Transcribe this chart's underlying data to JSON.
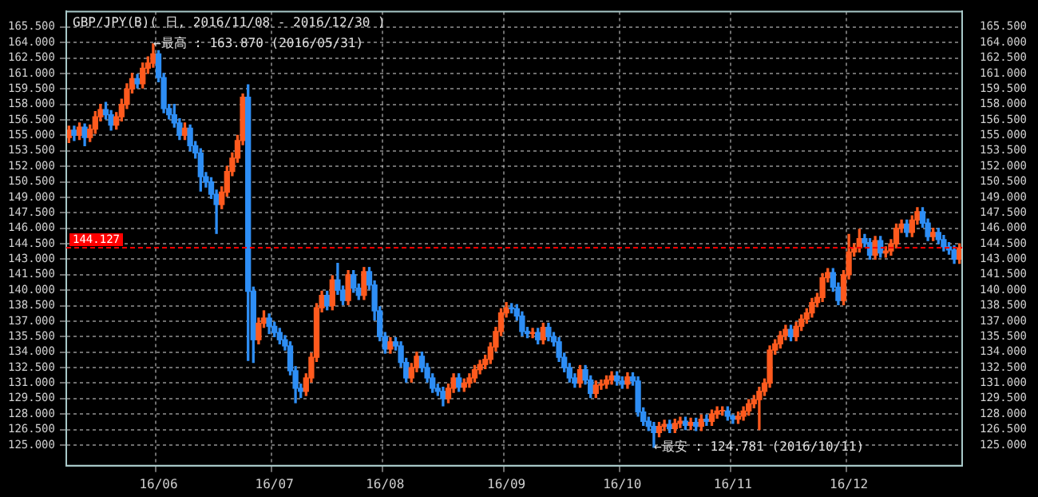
{
  "chart_data": {
    "type": "candlestick",
    "title": "GBP/JPY(B)( 日, 2016/11/08 - 2016/12/30 )",
    "categories": [
      null,
      null,
      null,
      null,
      null,
      null,
      null,
      null,
      null,
      null,
      null,
      null,
      null,
      null,
      null,
      null,
      null,
      "16/06",
      null,
      null,
      null,
      null,
      null,
      null,
      null,
      null,
      null,
      null,
      null,
      null,
      null,
      null,
      null,
      null,
      null,
      null,
      null,
      null,
      null,
      "16/07",
      null,
      null,
      null,
      null,
      null,
      null,
      null,
      null,
      null,
      null,
      null,
      null,
      null,
      null,
      null,
      null,
      null,
      null,
      null,
      null,
      "16/08",
      null,
      null,
      null,
      null,
      null,
      null,
      null,
      null,
      null,
      null,
      null,
      null,
      null,
      null,
      null,
      null,
      null,
      null,
      null,
      null,
      null,
      null,
      "16/09",
      null,
      null,
      null,
      null,
      null,
      null,
      null,
      null,
      null,
      null,
      null,
      null,
      null,
      null,
      null,
      null,
      null,
      null,
      null,
      null,
      null,
      "16/10",
      null,
      null,
      null,
      null,
      null,
      null,
      null,
      null,
      null,
      null,
      null,
      null,
      null,
      null,
      null,
      null,
      null,
      null,
      null,
      null,
      "16/11",
      null,
      null,
      null,
      null,
      null,
      null,
      null,
      null,
      null,
      null,
      null,
      null,
      null,
      null,
      null,
      null,
      null,
      null,
      null,
      null,
      null,
      "16/12",
      null,
      null,
      null,
      null,
      null,
      null,
      null,
      null,
      null,
      null,
      null,
      null,
      null,
      null,
      null,
      null,
      null,
      null,
      null,
      null,
      null
    ],
    "ohlc": [
      [
        154.8,
        155.9,
        154.3,
        155.5
      ],
      [
        155.5,
        155.9,
        154.5,
        155.0
      ],
      [
        155.0,
        156.2,
        154.6,
        155.8
      ],
      [
        155.8,
        156.1,
        154.0,
        154.8
      ],
      [
        154.8,
        156.0,
        154.4,
        155.6
      ],
      [
        155.6,
        157.3,
        155.2,
        156.8
      ],
      [
        156.8,
        158.0,
        156.4,
        157.5
      ],
      [
        157.5,
        158.2,
        156.6,
        157.0
      ],
      [
        157.0,
        157.4,
        155.5,
        156.0
      ],
      [
        156.0,
        157.2,
        155.6,
        156.8
      ],
      [
        156.8,
        158.5,
        156.4,
        158.0
      ],
      [
        158.0,
        160.0,
        157.6,
        159.5
      ],
      [
        159.5,
        161.0,
        159.1,
        160.5
      ],
      [
        160.5,
        160.9,
        159.6,
        160.0
      ],
      [
        160.0,
        162.0,
        159.6,
        161.5
      ],
      [
        161.5,
        162.6,
        161.0,
        162.0
      ],
      [
        162.0,
        163.87,
        161.6,
        162.9
      ],
      [
        162.9,
        163.2,
        160.2,
        160.6
      ],
      [
        160.6,
        161.0,
        157.2,
        157.6
      ],
      [
        157.6,
        158.0,
        156.6,
        157.0
      ],
      [
        157.0,
        158.0,
        155.8,
        156.2
      ],
      [
        156.2,
        156.6,
        154.6,
        155.0
      ],
      [
        155.0,
        156.2,
        154.6,
        155.7
      ],
      [
        155.7,
        156.0,
        153.5,
        154.0
      ],
      [
        154.0,
        154.4,
        152.8,
        153.3
      ],
      [
        153.3,
        153.7,
        149.6,
        151.0
      ],
      [
        151.0,
        151.4,
        150.0,
        150.5
      ],
      [
        150.5,
        150.9,
        148.9,
        149.3
      ],
      [
        149.3,
        149.7,
        145.5,
        148.3
      ],
      [
        148.3,
        150.0,
        147.9,
        149.5
      ],
      [
        149.5,
        152.0,
        149.1,
        151.5
      ],
      [
        151.5,
        153.3,
        151.1,
        152.8
      ],
      [
        152.8,
        155.0,
        152.4,
        154.5
      ],
      [
        154.5,
        159.0,
        154.1,
        158.7
      ],
      [
        158.7,
        159.9,
        133.2,
        139.9
      ],
      [
        139.9,
        140.3,
        133.0,
        135.2
      ],
      [
        135.2,
        137.3,
        134.8,
        136.8
      ],
      [
        136.8,
        138.0,
        136.4,
        137.3
      ],
      [
        137.3,
        137.7,
        135.8,
        136.5
      ],
      [
        136.5,
        136.9,
        135.5,
        135.9
      ],
      [
        135.9,
        136.3,
        134.8,
        135.2
      ],
      [
        135.2,
        135.6,
        134.2,
        134.6
      ],
      [
        134.6,
        135.0,
        131.8,
        132.2
      ],
      [
        132.2,
        132.6,
        129.1,
        130.5
      ],
      [
        130.5,
        130.9,
        129.6,
        130.2
      ],
      [
        130.2,
        131.9,
        129.8,
        131.5
      ],
      [
        131.5,
        133.9,
        131.1,
        133.5
      ],
      [
        133.5,
        138.7,
        133.1,
        138.3
      ],
      [
        138.3,
        139.9,
        137.9,
        139.5
      ],
      [
        139.5,
        139.9,
        138.1,
        138.5
      ],
      [
        138.5,
        141.4,
        138.1,
        141.0
      ],
      [
        141.0,
        142.6,
        139.6,
        140.0
      ],
      [
        140.0,
        140.4,
        138.6,
        139.0
      ],
      [
        139.0,
        141.9,
        138.6,
        141.5
      ],
      [
        141.5,
        141.9,
        139.8,
        140.2
      ],
      [
        140.2,
        140.6,
        139.1,
        139.5
      ],
      [
        139.5,
        142.2,
        139.1,
        141.8
      ],
      [
        141.8,
        142.2,
        140.1,
        140.5
      ],
      [
        140.5,
        140.9,
        137.1,
        138.0
      ],
      [
        138.0,
        138.4,
        135.1,
        135.5
      ],
      [
        135.5,
        135.9,
        133.9,
        134.3
      ],
      [
        134.3,
        135.4,
        133.9,
        135.0
      ],
      [
        135.0,
        135.4,
        134.2,
        134.6
      ],
      [
        134.6,
        135.0,
        132.6,
        133.0
      ],
      [
        133.0,
        133.4,
        131.1,
        131.5
      ],
      [
        131.5,
        132.9,
        131.1,
        132.5
      ],
      [
        132.5,
        134.0,
        132.1,
        133.6
      ],
      [
        133.6,
        134.0,
        132.1,
        132.5
      ],
      [
        132.5,
        132.9,
        131.1,
        131.5
      ],
      [
        131.5,
        131.9,
        130.1,
        130.5
      ],
      [
        130.5,
        130.9,
        129.8,
        130.2
      ],
      [
        130.2,
        130.6,
        128.8,
        129.5
      ],
      [
        129.5,
        130.9,
        129.1,
        130.5
      ],
      [
        130.5,
        131.9,
        130.1,
        131.5
      ],
      [
        131.5,
        131.9,
        130.2,
        130.6
      ],
      [
        130.6,
        131.4,
        130.2,
        131.0
      ],
      [
        131.0,
        131.9,
        130.6,
        131.5
      ],
      [
        131.5,
        132.7,
        131.1,
        132.3
      ],
      [
        132.3,
        133.2,
        131.9,
        132.8
      ],
      [
        132.8,
        133.7,
        132.4,
        133.3
      ],
      [
        133.3,
        134.9,
        132.9,
        134.5
      ],
      [
        134.5,
        136.4,
        134.1,
        136.0
      ],
      [
        136.0,
        138.2,
        135.6,
        137.8
      ],
      [
        137.8,
        138.8,
        137.4,
        138.3
      ],
      [
        138.3,
        138.7,
        137.8,
        138.2
      ],
      [
        138.2,
        138.6,
        137.1,
        137.5
      ],
      [
        137.5,
        137.9,
        135.6,
        136.0
      ],
      [
        136.0,
        136.4,
        135.4,
        135.8
      ],
      [
        135.8,
        136.3,
        135.4,
        135.9
      ],
      [
        135.9,
        136.3,
        134.8,
        135.2
      ],
      [
        135.2,
        136.8,
        134.8,
        136.4
      ],
      [
        136.4,
        136.8,
        135.1,
        135.5
      ],
      [
        135.5,
        135.9,
        134.6,
        135.0
      ],
      [
        135.0,
        135.4,
        133.1,
        133.5
      ],
      [
        133.5,
        133.9,
        132.1,
        132.5
      ],
      [
        132.5,
        132.9,
        131.1,
        131.5
      ],
      [
        131.5,
        131.9,
        130.6,
        131.0
      ],
      [
        131.0,
        132.7,
        130.6,
        132.3
      ],
      [
        132.3,
        132.7,
        130.9,
        131.3
      ],
      [
        131.3,
        131.7,
        129.6,
        130.0
      ],
      [
        130.0,
        131.2,
        129.6,
        130.8
      ],
      [
        130.8,
        131.3,
        130.4,
        130.9
      ],
      [
        130.9,
        131.7,
        130.5,
        131.3
      ],
      [
        131.3,
        132.1,
        130.9,
        131.7
      ],
      [
        131.7,
        132.1,
        130.8,
        131.2
      ],
      [
        131.2,
        131.6,
        130.5,
        130.9
      ],
      [
        130.9,
        132.0,
        130.5,
        131.6
      ],
      [
        131.6,
        132.0,
        130.8,
        131.2
      ],
      [
        131.2,
        131.6,
        127.8,
        128.2
      ],
      [
        128.2,
        128.6,
        126.9,
        127.3
      ],
      [
        127.3,
        127.7,
        126.4,
        126.8
      ],
      [
        126.8,
        127.2,
        124.781,
        126.2
      ],
      [
        126.2,
        127.2,
        125.8,
        126.8
      ],
      [
        126.8,
        127.4,
        126.4,
        127.0
      ],
      [
        127.0,
        127.4,
        126.2,
        126.6
      ],
      [
        126.6,
        127.5,
        126.2,
        127.1
      ],
      [
        127.1,
        127.7,
        126.7,
        127.3
      ],
      [
        127.3,
        127.7,
        126.5,
        126.9
      ],
      [
        126.9,
        127.6,
        126.5,
        127.2
      ],
      [
        127.2,
        127.6,
        126.4,
        126.8
      ],
      [
        126.8,
        127.9,
        126.4,
        127.5
      ],
      [
        127.5,
        127.9,
        126.9,
        127.3
      ],
      [
        127.3,
        128.4,
        126.9,
        128.0
      ],
      [
        128.0,
        128.7,
        127.6,
        128.3
      ],
      [
        128.3,
        128.7,
        127.9,
        128.3
      ],
      [
        128.3,
        128.7,
        127.4,
        127.8
      ],
      [
        127.8,
        127.9,
        127.1,
        127.5
      ],
      [
        127.5,
        128.2,
        127.1,
        127.8
      ],
      [
        127.8,
        128.7,
        127.4,
        128.3
      ],
      [
        128.3,
        129.4,
        127.9,
        129.0
      ],
      [
        129.0,
        129.8,
        128.6,
        129.4
      ],
      [
        129.4,
        130.6,
        126.5,
        130.2
      ],
      [
        130.2,
        131.4,
        129.8,
        131.0
      ],
      [
        131.0,
        134.6,
        130.6,
        134.2
      ],
      [
        134.2,
        135.2,
        133.8,
        134.8
      ],
      [
        134.8,
        136.0,
        134.4,
        135.6
      ],
      [
        135.6,
        136.6,
        135.2,
        136.2
      ],
      [
        136.2,
        136.6,
        135.1,
        135.5
      ],
      [
        135.5,
        136.9,
        135.1,
        136.5
      ],
      [
        136.5,
        137.6,
        136.1,
        137.2
      ],
      [
        137.2,
        138.2,
        136.8,
        137.8
      ],
      [
        137.8,
        139.2,
        137.4,
        138.8
      ],
      [
        138.8,
        139.7,
        138.4,
        139.3
      ],
      [
        139.3,
        141.6,
        138.9,
        141.2
      ],
      [
        141.2,
        142.1,
        140.8,
        141.7
      ],
      [
        141.7,
        142.1,
        139.9,
        140.3
      ],
      [
        140.3,
        140.7,
        138.6,
        139.0
      ],
      [
        139.0,
        141.9,
        138.6,
        141.5
      ],
      [
        141.5,
        145.4,
        141.1,
        143.7
      ],
      [
        143.7,
        144.5,
        143.3,
        144.1
      ],
      [
        144.1,
        145.9,
        143.7,
        145.0
      ],
      [
        145.0,
        145.4,
        144.2,
        144.6
      ],
      [
        144.6,
        145.0,
        143.0,
        143.4
      ],
      [
        143.4,
        145.2,
        143.0,
        144.8
      ],
      [
        144.8,
        145.2,
        143.2,
        143.6
      ],
      [
        143.6,
        144.2,
        143.2,
        143.8
      ],
      [
        143.8,
        144.9,
        143.4,
        144.5
      ],
      [
        144.5,
        146.4,
        144.1,
        146.0
      ],
      [
        146.0,
        146.8,
        145.6,
        146.4
      ],
      [
        146.4,
        146.8,
        145.2,
        145.6
      ],
      [
        145.6,
        147.2,
        145.2,
        146.8
      ],
      [
        146.8,
        148.0,
        146.4,
        147.6
      ],
      [
        147.6,
        148.0,
        146.1,
        146.5
      ],
      [
        146.5,
        146.9,
        144.8,
        145.2
      ],
      [
        145.2,
        146.0,
        144.8,
        145.6
      ],
      [
        145.6,
        146.0,
        144.5,
        144.9
      ],
      [
        144.9,
        145.3,
        143.8,
        144.2
      ],
      [
        144.2,
        144.6,
        143.5,
        143.9
      ],
      [
        143.9,
        144.3,
        142.6,
        143.0
      ],
      [
        143.0,
        144.5,
        142.6,
        144.1
      ]
    ],
    "colors": [
      "#ff5a1e",
      "#2e8ef5",
      "#ff5a1e",
      "#2e8ef5",
      "#ff5a1e",
      "#ff5a1e",
      "#ff5a1e",
      "#2e8ef5",
      "#2e8ef5",
      "#ff5a1e",
      "#ff5a1e",
      "#ff5a1e",
      "#ff5a1e",
      "#2e8ef5",
      "#ff5a1e",
      "#ff5a1e",
      "#ff5a1e",
      "#2e8ef5",
      "#2e8ef5",
      "#2e8ef5",
      "#2e8ef5",
      "#2e8ef5",
      "#ff5a1e",
      "#2e8ef5",
      "#2e8ef5",
      "#2e8ef5",
      "#2e8ef5",
      "#2e8ef5",
      "#2e8ef5",
      "#ff5a1e",
      "#ff5a1e",
      "#ff5a1e",
      "#ff5a1e",
      "#ff5a1e",
      "#2e8ef5",
      "#2e8ef5",
      "#ff5a1e",
      "#ff5a1e",
      "#2e8ef5",
      "#2e8ef5",
      "#2e8ef5",
      "#2e8ef5",
      "#2e8ef5",
      "#2e8ef5",
      "#2e8ef5",
      "#ff5a1e",
      "#ff5a1e",
      "#ff5a1e",
      "#ff5a1e",
      "#2e8ef5",
      "#ff5a1e",
      "#2e8ef5",
      "#2e8ef5",
      "#ff5a1e",
      "#2e8ef5",
      "#2e8ef5",
      "#ff5a1e",
      "#2e8ef5",
      "#2e8ef5",
      "#2e8ef5",
      "#2e8ef5",
      "#ff5a1e",
      "#2e8ef5",
      "#2e8ef5",
      "#2e8ef5",
      "#ff5a1e",
      "#ff5a1e",
      "#2e8ef5",
      "#2e8ef5",
      "#2e8ef5",
      "#2e8ef5",
      "#2e8ef5",
      "#ff5a1e",
      "#ff5a1e",
      "#2e8ef5",
      "#ff5a1e",
      "#ff5a1e",
      "#ff5a1e",
      "#ff5a1e",
      "#ff5a1e",
      "#ff5a1e",
      "#ff5a1e",
      "#ff5a1e",
      "#ff5a1e",
      "#2e8ef5",
      "#2e8ef5",
      "#2e8ef5",
      "#2e8ef5",
      "#ff5a1e",
      "#2e8ef5",
      "#ff5a1e",
      "#2e8ef5",
      "#2e8ef5",
      "#2e8ef5",
      "#2e8ef5",
      "#2e8ef5",
      "#2e8ef5",
      "#ff5a1e",
      "#2e8ef5",
      "#2e8ef5",
      "#ff5a1e",
      "#ff5a1e",
      "#ff5a1e",
      "#ff5a1e",
      "#2e8ef5",
      "#2e8ef5",
      "#ff5a1e",
      "#2e8ef5",
      "#2e8ef5",
      "#2e8ef5",
      "#2e8ef5",
      "#2e8ef5",
      "#ff5a1e",
      "#ff5a1e",
      "#2e8ef5",
      "#ff5a1e",
      "#ff5a1e",
      "#2e8ef5",
      "#ff5a1e",
      "#2e8ef5",
      "#ff5a1e",
      "#2e8ef5",
      "#ff5a1e",
      "#ff5a1e",
      "#ff5a1e",
      "#2e8ef5",
      "#2e8ef5",
      "#ff5a1e",
      "#ff5a1e",
      "#ff5a1e",
      "#ff5a1e",
      "#ff5a1e",
      "#ff5a1e",
      "#ff5a1e",
      "#ff5a1e",
      "#ff5a1e",
      "#ff5a1e",
      "#2e8ef5",
      "#ff5a1e",
      "#ff5a1e",
      "#ff5a1e",
      "#ff5a1e",
      "#ff5a1e",
      "#ff5a1e",
      "#ff5a1e",
      "#2e8ef5",
      "#2e8ef5",
      "#ff5a1e",
      "#ff5a1e",
      "#ff5a1e",
      "#ff5a1e",
      "#2e8ef5",
      "#2e8ef5",
      "#ff5a1e",
      "#2e8ef5",
      "#ff5a1e",
      "#ff5a1e",
      "#ff5a1e",
      "#ff5a1e",
      "#2e8ef5",
      "#ff5a1e",
      "#ff5a1e",
      "#2e8ef5",
      "#2e8ef5",
      "#ff5a1e",
      "#2e8ef5",
      "#2e8ef5",
      "#2e8ef5",
      "#2e8ef5",
      "#ff5a1e"
    ],
    "ylim": [
      123.0,
      167.0
    ],
    "yticks": [
      {
        "value": 125,
        "label": "125.000"
      },
      {
        "value": 126.5,
        "label": "126.500"
      },
      {
        "value": 128,
        "label": "128.000"
      },
      {
        "value": 129.5,
        "label": "129.500"
      },
      {
        "value": 131,
        "label": "131.000"
      },
      {
        "value": 132.5,
        "label": "132.500"
      },
      {
        "value": 134,
        "label": "134.000"
      },
      {
        "value": 135.5,
        "label": "135.500"
      },
      {
        "value": 137,
        "label": "137.000"
      },
      {
        "value": 138.5,
        "label": "138.500"
      },
      {
        "value": 140,
        "label": "140.000"
      },
      {
        "value": 141.5,
        "label": "141.500"
      },
      {
        "value": 143,
        "label": "143.000"
      },
      {
        "value": 144.5,
        "label": "144.500"
      },
      {
        "value": 146,
        "label": "146.000"
      },
      {
        "value": 147.5,
        "label": "147.500"
      },
      {
        "value": 149,
        "label": "149.000"
      },
      {
        "value": 150.5,
        "label": "150.500"
      },
      {
        "value": 152,
        "label": "152.000"
      },
      {
        "value": 153.5,
        "label": "153.500"
      },
      {
        "value": 155,
        "label": "155.000"
      },
      {
        "value": 156.5,
        "label": "156.500"
      },
      {
        "value": 158,
        "label": "158.000"
      },
      {
        "value": 159.5,
        "label": "159.500"
      },
      {
        "value": 161,
        "label": "161.000"
      },
      {
        "value": 162.5,
        "label": "162.500"
      },
      {
        "value": 164,
        "label": "164.000"
      },
      {
        "value": 165.5,
        "label": "165.500"
      }
    ],
    "y2lim": [
      123.0,
      167.0
    ],
    "y2ticks": [
      {
        "value": 125,
        "label": "125.000"
      },
      {
        "value": 126.5,
        "label": "126.500"
      },
      {
        "value": 128,
        "label": "128.000"
      },
      {
        "value": 129.5,
        "label": "129.500"
      },
      {
        "value": 131,
        "label": "131.000"
      },
      {
        "value": 132.5,
        "label": "132.500"
      },
      {
        "value": 134,
        "label": "134.000"
      },
      {
        "value": 135.5,
        "label": "135.500"
      },
      {
        "value": 137,
        "label": "137.000"
      },
      {
        "value": 138.5,
        "label": "138.500"
      },
      {
        "value": 140,
        "label": "140.000"
      },
      {
        "value": 141.5,
        "label": "141.500"
      },
      {
        "value": 143,
        "label": "143.000"
      },
      {
        "value": 144.5,
        "label": "144.500"
      },
      {
        "value": 146,
        "label": "146.000"
      },
      {
        "value": 147.5,
        "label": "147.500"
      },
      {
        "value": 149,
        "label": "149.000"
      },
      {
        "value": 150.5,
        "label": "150.500"
      },
      {
        "value": 152,
        "label": "152.000"
      },
      {
        "value": 153.5,
        "label": "153.500"
      },
      {
        "value": 155,
        "label": "155.000"
      },
      {
        "value": 156.5,
        "label": "156.500"
      },
      {
        "value": 158,
        "label": "158.000"
      },
      {
        "value": 159.5,
        "label": "159.500"
      },
      {
        "value": 161,
        "label": "161.000"
      },
      {
        "value": 162.5,
        "label": "162.500"
      },
      {
        "value": 164,
        "label": "164.000"
      },
      {
        "value": 165.5,
        "label": "165.500"
      }
    ],
    "ref_lines": [
      {
        "axis": "y",
        "value": 144.127,
        "label": "144.127",
        "color": "#ff0000",
        "line_style": "dashed"
      }
    ],
    "annotations": [
      "←最高 : 163.870 (2016/05/31)",
      "←最安 : 124.781 (2016/10/11)"
    ],
    "grid": true,
    "legend": false
  }
}
